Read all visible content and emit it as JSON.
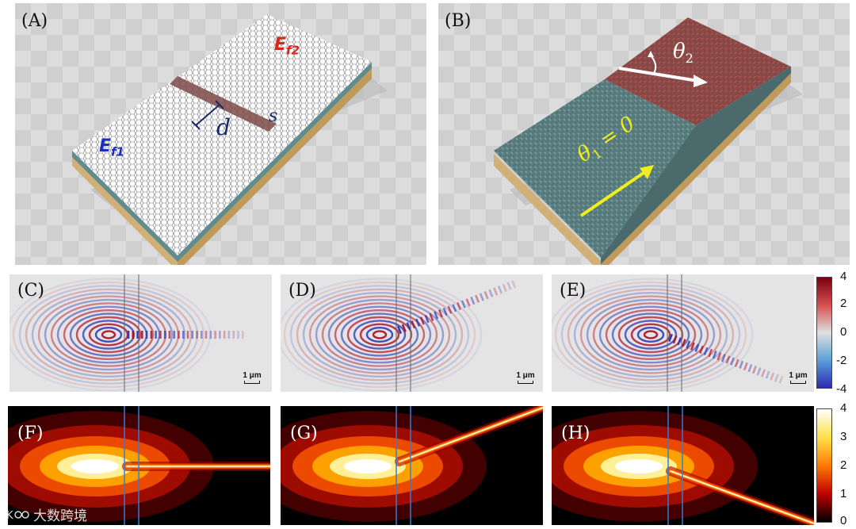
{
  "panels": {
    "A": {
      "label": "(A)",
      "ef1": "E",
      "ef1_sub": "f1",
      "ef2": "E",
      "ef2_sub": "f2",
      "d": "d",
      "s": "s"
    },
    "B": {
      "label": "(B)",
      "theta1": "θ",
      "theta1_sub": "1",
      "theta1_rhs": " = 0",
      "theta2": "θ",
      "theta2_sub": "2"
    },
    "C": {
      "label": "(C)",
      "scale": "1 μm"
    },
    "D": {
      "label": "(D)",
      "scale": "1 μm"
    },
    "E": {
      "label": "(E)",
      "scale": "1 μm"
    },
    "F": {
      "label": "(F)"
    },
    "G": {
      "label": "(G)"
    },
    "H": {
      "label": "(H)"
    }
  },
  "colorbar_field": {
    "ticks": [
      "4",
      "2",
      "0",
      "-2",
      "-4"
    ],
    "colors": [
      "#7a0010",
      "#e0e0e0",
      "#2a2ab0"
    ]
  },
  "colorbar_intensity": {
    "ticks": [
      "4",
      "3",
      "2",
      "1",
      "0"
    ],
    "colors": [
      "#ffffff",
      "#ffe14a",
      "#ff7a00",
      "#c00000",
      "#000000"
    ]
  },
  "watermark": {
    "icon": "kuajing-logo-icon",
    "text": "大数跨境"
  }
}
